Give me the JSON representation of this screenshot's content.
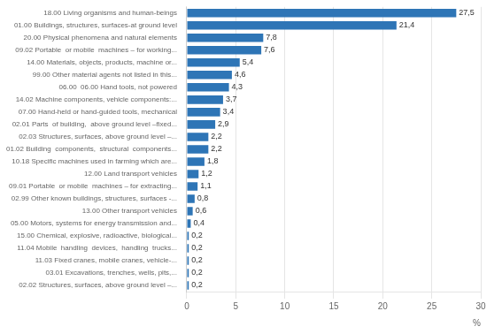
{
  "chart_data": {
    "type": "bar",
    "orientation": "horizontal",
    "categories": [
      "02.02 Structures, surfaces, above ground level –...",
      "03.01 Excavations, trenches, wells, pits,...",
      "11.03 Fixed cranes, mobile cranes, vehicle-...",
      "11.04 Mobile  handling  devices,  handling  trucks...",
      "15.00 Chemical, explosive, radioactive, biological...",
      "05.00 Motors, systems for energy transmission and...",
      "13.00 Other transport vehicles",
      "02.99 Other known buildings, structures, surfaces -...",
      "09.01 Portable  or mobile  machines – for extracting...",
      "12.00 Land transport vehicles",
      "10.18 Specific machines used in farming which are...",
      "01.02 Building  components,  structural  components...",
      "02.03 Structures, surfaces, above ground level –...",
      "02.01 Parts  of building,  above ground level –fixed...",
      "07.00 Hand-held or hand-guided tools, mechanical",
      "14.02 Machine components, vehicle components:...",
      "06.00  06.00 Hand tools, not powered",
      "99.00 Other material agents not listed in this...",
      "14.00 Materials, objects, products, machine or...",
      "09.02 Portable  or mobile  machines – for working...",
      "20.00 Physical phenomena and natural elements",
      "01.00 Buildings, structures, surfaces-at ground level",
      "18.00 Living organisms and human-beings"
    ],
    "values": [
      0.2,
      0.2,
      0.2,
      0.2,
      0.2,
      0.4,
      0.6,
      0.8,
      1.1,
      1.2,
      1.8,
      2.2,
      2.2,
      2.9,
      3.4,
      3.7,
      4.3,
      4.6,
      5.4,
      7.6,
      7.8,
      21.4,
      27.5
    ],
    "value_labels": [
      "0,2",
      "0,2",
      "0,2",
      "0,2",
      "0,2",
      "0,4",
      "0,6",
      "0,8",
      "1,1",
      "1,2",
      "1,8",
      "2,2",
      "2,2",
      "2,9",
      "3,4",
      "3,7",
      "4,3",
      "4,6",
      "5,4",
      "7,6",
      "7,8",
      "21,4",
      "27,5"
    ],
    "data_labels": true,
    "color": "#2E75B6",
    "xlabel": "%",
    "xlim": [
      0,
      30
    ],
    "xticks": [
      0,
      5,
      10,
      15,
      20,
      25,
      30
    ],
    "grid": true
  }
}
